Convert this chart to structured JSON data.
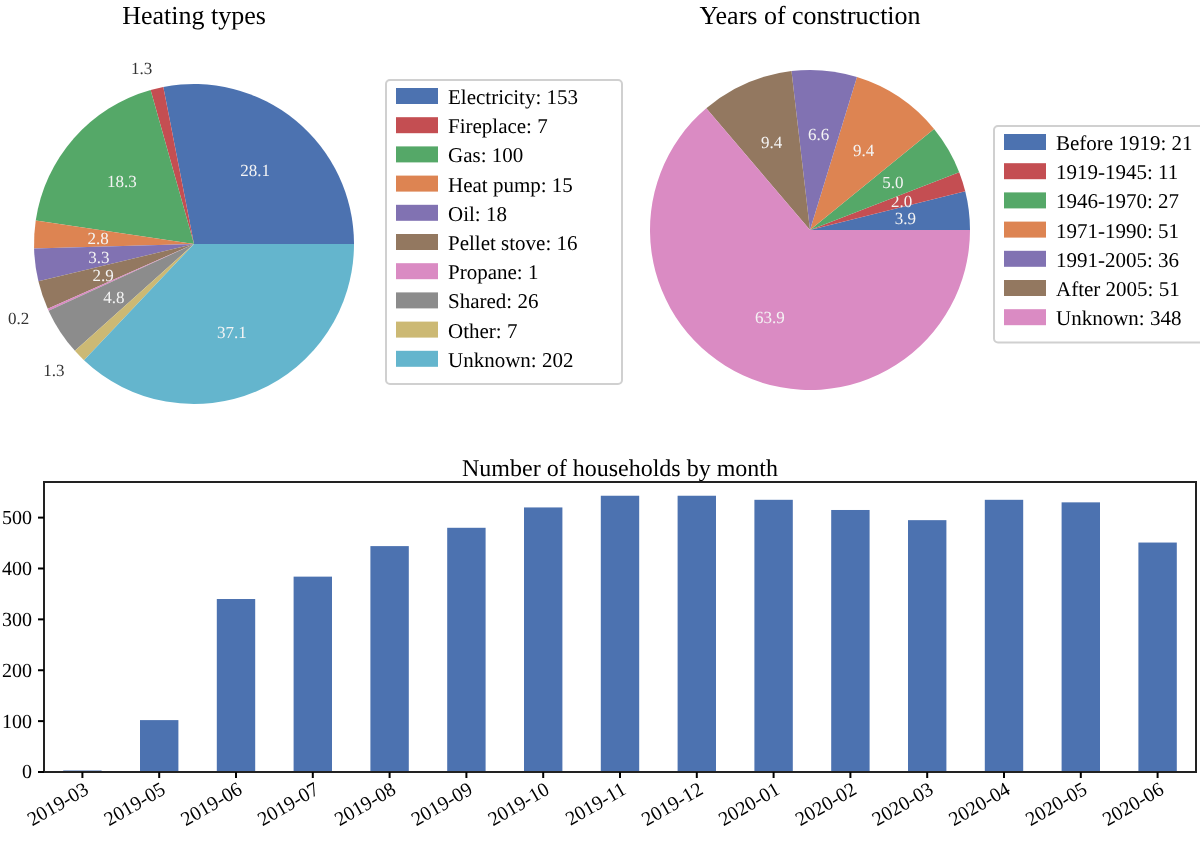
{
  "chart_data": [
    {
      "type": "pie",
      "title": "Heating types",
      "categories": [
        "Electricity: 153",
        "Fireplace: 7",
        "Gas: 100",
        "Heat pump: 15",
        "Oil: 18",
        "Pellet stove: 16",
        "Propane: 1",
        "Shared: 26",
        "Other: 7",
        "Unknown: 202"
      ],
      "values": [
        28.1,
        1.3,
        18.3,
        2.8,
        3.3,
        2.9,
        0.2,
        4.8,
        1.3,
        37.1
      ],
      "value_labels": [
        "28.1",
        "1.3",
        "18.3",
        "2.8",
        "3.3",
        "2.9",
        "0.2",
        "4.8",
        "1.3",
        "37.1"
      ],
      "colors": [
        "#4c72b0",
        "#c44e52",
        "#55a868",
        "#dd8452",
        "#8172b2",
        "#937860",
        "#da8bc3",
        "#8c8c8c",
        "#ccb974",
        "#64b5cd"
      ],
      "legend": "right"
    },
    {
      "type": "pie",
      "title": "Years of construction",
      "categories": [
        "Before 1919: 21",
        "1919-1945: 11",
        "1946-1970: 27",
        "1971-1990: 51",
        "1991-2005: 36",
        "After 2005: 51",
        "Unknown: 348"
      ],
      "values": [
        3.9,
        2.0,
        5.0,
        9.4,
        6.6,
        9.4,
        63.9
      ],
      "value_labels": [
        "3.9",
        "2.0",
        "5.0",
        "9.4",
        "6.6",
        "9.4",
        "63.9"
      ],
      "colors": [
        "#4c72b0",
        "#c44e52",
        "#55a868",
        "#dd8452",
        "#8172b2",
        "#937860",
        "#da8bc3"
      ],
      "legend": "right"
    },
    {
      "type": "bar",
      "title": "Number of households by month",
      "categories": [
        "2019-03",
        "2019-05",
        "2019-06",
        "2019-07",
        "2019-08",
        "2019-09",
        "2019-10",
        "2019-11",
        "2019-12",
        "2020-01",
        "2020-02",
        "2020-03",
        "2020-04",
        "2020-05",
        "2020-06"
      ],
      "values": [
        3,
        102,
        340,
        384,
        444,
        480,
        520,
        543,
        543,
        535,
        515,
        495,
        535,
        530,
        451
      ],
      "color": "#4c72b0",
      "ylim": [
        0,
        570
      ],
      "yticks": [
        0,
        100,
        200,
        300,
        400,
        500
      ],
      "grid": false
    }
  ]
}
